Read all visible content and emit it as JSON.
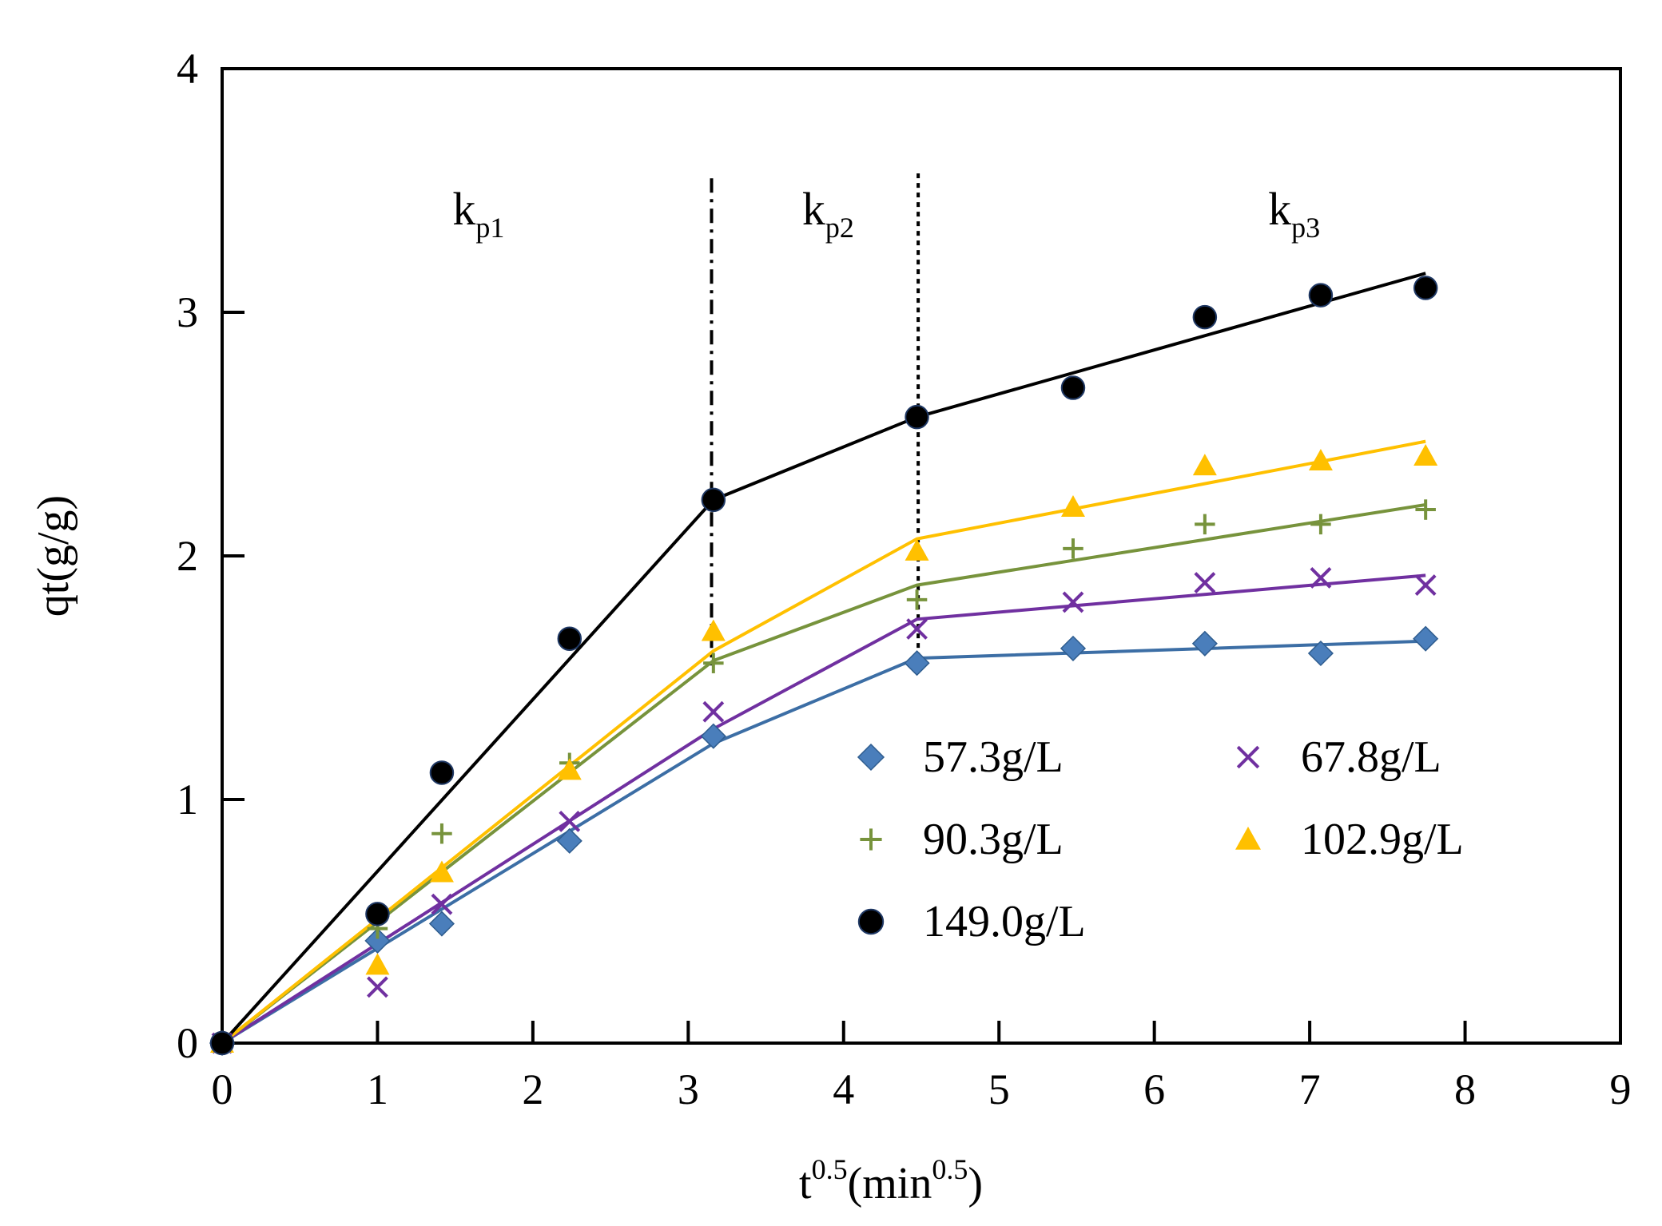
{
  "chart_data": {
    "type": "scatter",
    "title": "",
    "xlabel": {
      "base": "t",
      "sup": "0.5",
      "unit_base": "(min",
      "unit_sup": "0.5",
      "unit_close": ")"
    },
    "ylabel": "qt(g/g)",
    "xlim": [
      0,
      9
    ],
    "ylim": [
      0,
      4
    ],
    "xticks": [
      0,
      1,
      2,
      3,
      4,
      5,
      6,
      7,
      8,
      9
    ],
    "yticks": [
      0,
      1,
      2,
      3,
      4
    ],
    "grid": false,
    "legend_position": "lower-right",
    "x": [
      0,
      1,
      1.414,
      2.236,
      3.162,
      4.472,
      5.477,
      6.325,
      7.071,
      7.746
    ],
    "series": [
      {
        "name": "57.3g/L",
        "marker": "diamond",
        "color": "#4a7ebb",
        "line_color": "#3c6ea5",
        "values": [
          0,
          0.42,
          0.49,
          0.83,
          1.26,
          1.56,
          1.62,
          1.64,
          1.6,
          1.66
        ],
        "fit": [
          [
            0,
            0
          ],
          [
            3.162,
            1.23
          ],
          [
            4.472,
            1.58
          ],
          [
            7.746,
            1.65
          ]
        ]
      },
      {
        "name": "67.8g/L",
        "marker": "x",
        "color": "#7030a0",
        "line_color": "#7030a0",
        "values": [
          0,
          0.23,
          0.57,
          0.91,
          1.36,
          1.7,
          1.81,
          1.89,
          1.91,
          1.88
        ],
        "fit": [
          [
            0,
            0
          ],
          [
            3.162,
            1.29
          ],
          [
            4.472,
            1.74
          ],
          [
            7.746,
            1.92
          ]
        ]
      },
      {
        "name": "90.3g/L",
        "marker": "plus",
        "color": "#77933c",
        "line_color": "#77933c",
        "values": [
          0,
          0.47,
          0.86,
          1.15,
          1.56,
          1.82,
          2.03,
          2.13,
          2.13,
          2.19
        ],
        "fit": [
          [
            0,
            0
          ],
          [
            3.162,
            1.57
          ],
          [
            4.472,
            1.88
          ],
          [
            7.746,
            2.21
          ]
        ]
      },
      {
        "name": "102.9g/L",
        "marker": "triangle",
        "color": "#ffc000",
        "line_color": "#ffc000",
        "values": [
          0,
          0.32,
          0.7,
          1.12,
          1.69,
          2.02,
          2.2,
          2.37,
          2.39,
          2.41
        ],
        "fit": [
          [
            0,
            0
          ],
          [
            3.162,
            1.61
          ],
          [
            4.472,
            2.07
          ],
          [
            7.746,
            2.47
          ]
        ]
      },
      {
        "name": "149.0g/L",
        "marker": "circle",
        "color": "#000000",
        "line_color": "#000000",
        "values": [
          0,
          0.53,
          1.11,
          1.66,
          2.23,
          2.57,
          2.69,
          2.98,
          3.07,
          3.1
        ],
        "fit": [
          [
            0,
            0
          ],
          [
            3.162,
            2.23
          ],
          [
            4.472,
            2.57
          ],
          [
            7.746,
            3.16
          ]
        ]
      }
    ],
    "dividers": [
      {
        "style": "dash-dot",
        "x_top": 3.15,
        "y_top": 3.55,
        "x_bottom": 3.15,
        "y_bottom": 1.55
      },
      {
        "style": "dotted",
        "x_top": 4.48,
        "y_top": 3.57,
        "x_bottom": 4.48,
        "y_bottom": 1.6
      }
    ],
    "regions": [
      {
        "base": "k",
        "sub": "p1",
        "x": 1.65,
        "y": 3.36
      },
      {
        "base": "k",
        "sub": "p2",
        "x": 3.9,
        "y": 3.36
      },
      {
        "base": "k",
        "sub": "p3",
        "x": 6.9,
        "y": 3.36
      }
    ]
  }
}
